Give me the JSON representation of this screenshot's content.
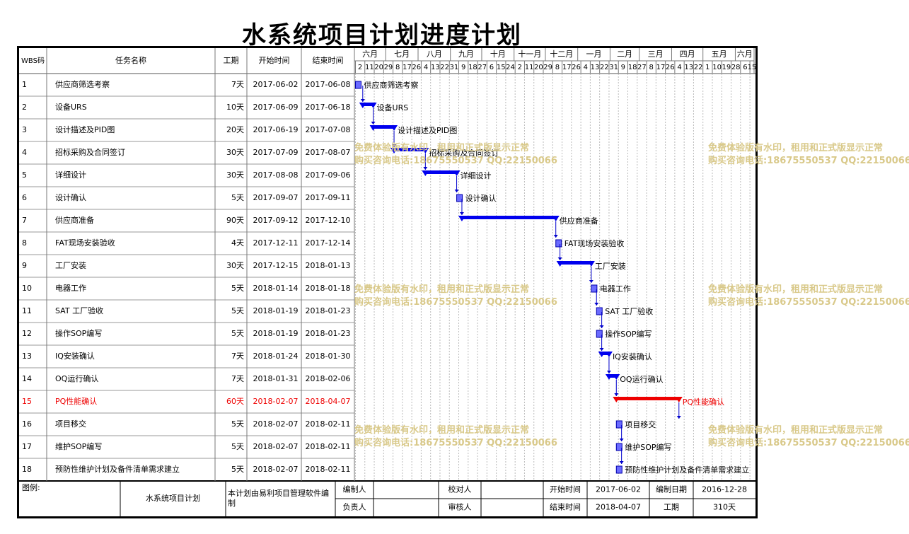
{
  "title": "水系统项目计划进度计划",
  "headers": {
    "wbs": "WBS码",
    "name": "任务名称",
    "duration": "工期",
    "start": "开始时间",
    "end": "结束时间"
  },
  "months": [
    "六月",
    "七月",
    "八月",
    "九月",
    "十月",
    "十一月",
    "十二月",
    "一月",
    "二月",
    "三月",
    "四月",
    "五月",
    "六月"
  ],
  "days": [
    "2",
    "11",
    "20",
    "29",
    "8",
    "17",
    "26",
    "4",
    "13",
    "22",
    "31",
    "9",
    "18",
    "27",
    "6",
    "15",
    "24",
    "2",
    "11",
    "20",
    "29",
    "8",
    "17",
    "26",
    "4",
    "13",
    "22",
    "31",
    "9",
    "18",
    "27",
    "8",
    "17",
    "26",
    "4",
    "13",
    "22",
    "1",
    "10",
    "19",
    "28",
    "6",
    "15"
  ],
  "tasks": [
    {
      "wbs": "1",
      "name": "供应商筛选考察",
      "duration": "7天",
      "start": "2017-06-02",
      "end": "2017-06-08"
    },
    {
      "wbs": "2",
      "name": "设备URS",
      "duration": "10天",
      "start": "2017-06-09",
      "end": "2017-06-18"
    },
    {
      "wbs": "3",
      "name": "设计描述及PID图",
      "duration": "20天",
      "start": "2017-06-19",
      "end": "2017-07-08"
    },
    {
      "wbs": "4",
      "name": "招标采购及合同签订",
      "duration": "30天",
      "start": "2017-07-09",
      "end": "2017-08-07"
    },
    {
      "wbs": "5",
      "name": "详细设计",
      "duration": "30天",
      "start": "2017-08-08",
      "end": "2017-09-06"
    },
    {
      "wbs": "6",
      "name": "设计确认",
      "duration": "5天",
      "start": "2017-09-07",
      "end": "2017-09-11"
    },
    {
      "wbs": "7",
      "name": "供应商准备",
      "duration": "90天",
      "start": "2017-09-12",
      "end": "2017-12-10"
    },
    {
      "wbs": "8",
      "name": "FAT现场安装验收",
      "duration": "4天",
      "start": "2017-12-11",
      "end": "2017-12-14"
    },
    {
      "wbs": "9",
      "name": "工厂安装",
      "duration": "30天",
      "start": "2017-12-15",
      "end": "2018-01-13"
    },
    {
      "wbs": "10",
      "name": "电器工作",
      "duration": "5天",
      "start": "2018-01-14",
      "end": "2018-01-18"
    },
    {
      "wbs": "11",
      "name": "SAT 工厂验收",
      "duration": "5天",
      "start": "2018-01-19",
      "end": "2018-01-23"
    },
    {
      "wbs": "12",
      "name": "操作SOP编写",
      "duration": "5天",
      "start": "2018-01-19",
      "end": "2018-01-23"
    },
    {
      "wbs": "13",
      "name": "IQ安装确认",
      "duration": "7天",
      "start": "2018-01-24",
      "end": "2018-01-30"
    },
    {
      "wbs": "14",
      "name": "OQ运行确认",
      "duration": "7天",
      "start": "2018-01-31",
      "end": "2018-02-06"
    },
    {
      "wbs": "15",
      "name": "PQ性能确认",
      "duration": "60天",
      "start": "2018-02-07",
      "end": "2018-04-07",
      "critical": true
    },
    {
      "wbs": "16",
      "name": "项目移交",
      "duration": "5天",
      "start": "2018-02-07",
      "end": "2018-02-11"
    },
    {
      "wbs": "17",
      "name": "维护SOP编写",
      "duration": "5天",
      "start": "2018-02-07",
      "end": "2018-02-11"
    },
    {
      "wbs": "18",
      "name": "预防性维护计划及备件清单需求建立",
      "duration": "5天",
      "start": "2018-02-07",
      "end": "2018-02-11"
    }
  ],
  "footer": {
    "legend_label": "图例:",
    "project_name": "水系统项目计划",
    "note": "本计划由易利项目管理软件编制",
    "compiler_label": "编制人",
    "checker_label": "校对人",
    "start_label": "开始时间",
    "start_value": "2017-06-02",
    "compile_date_label": "编制日期",
    "compile_date_value": "2016-12-28",
    "owner_label": "负责人",
    "reviewer_label": "审核人",
    "end_label": "结束时间",
    "end_value": "2018-04-07",
    "duration_label": "工期",
    "duration_value": "310天"
  },
  "watermark": {
    "line1": "免费体验版有水印，租用和正式版显示正常",
    "line2": "购买咨询电话:18675550537 QQ:22150066"
  },
  "colors": {
    "bar": "#0000ee",
    "critical": "#ee0000",
    "grid": "#888888",
    "watermark": "#d9c98a"
  }
}
